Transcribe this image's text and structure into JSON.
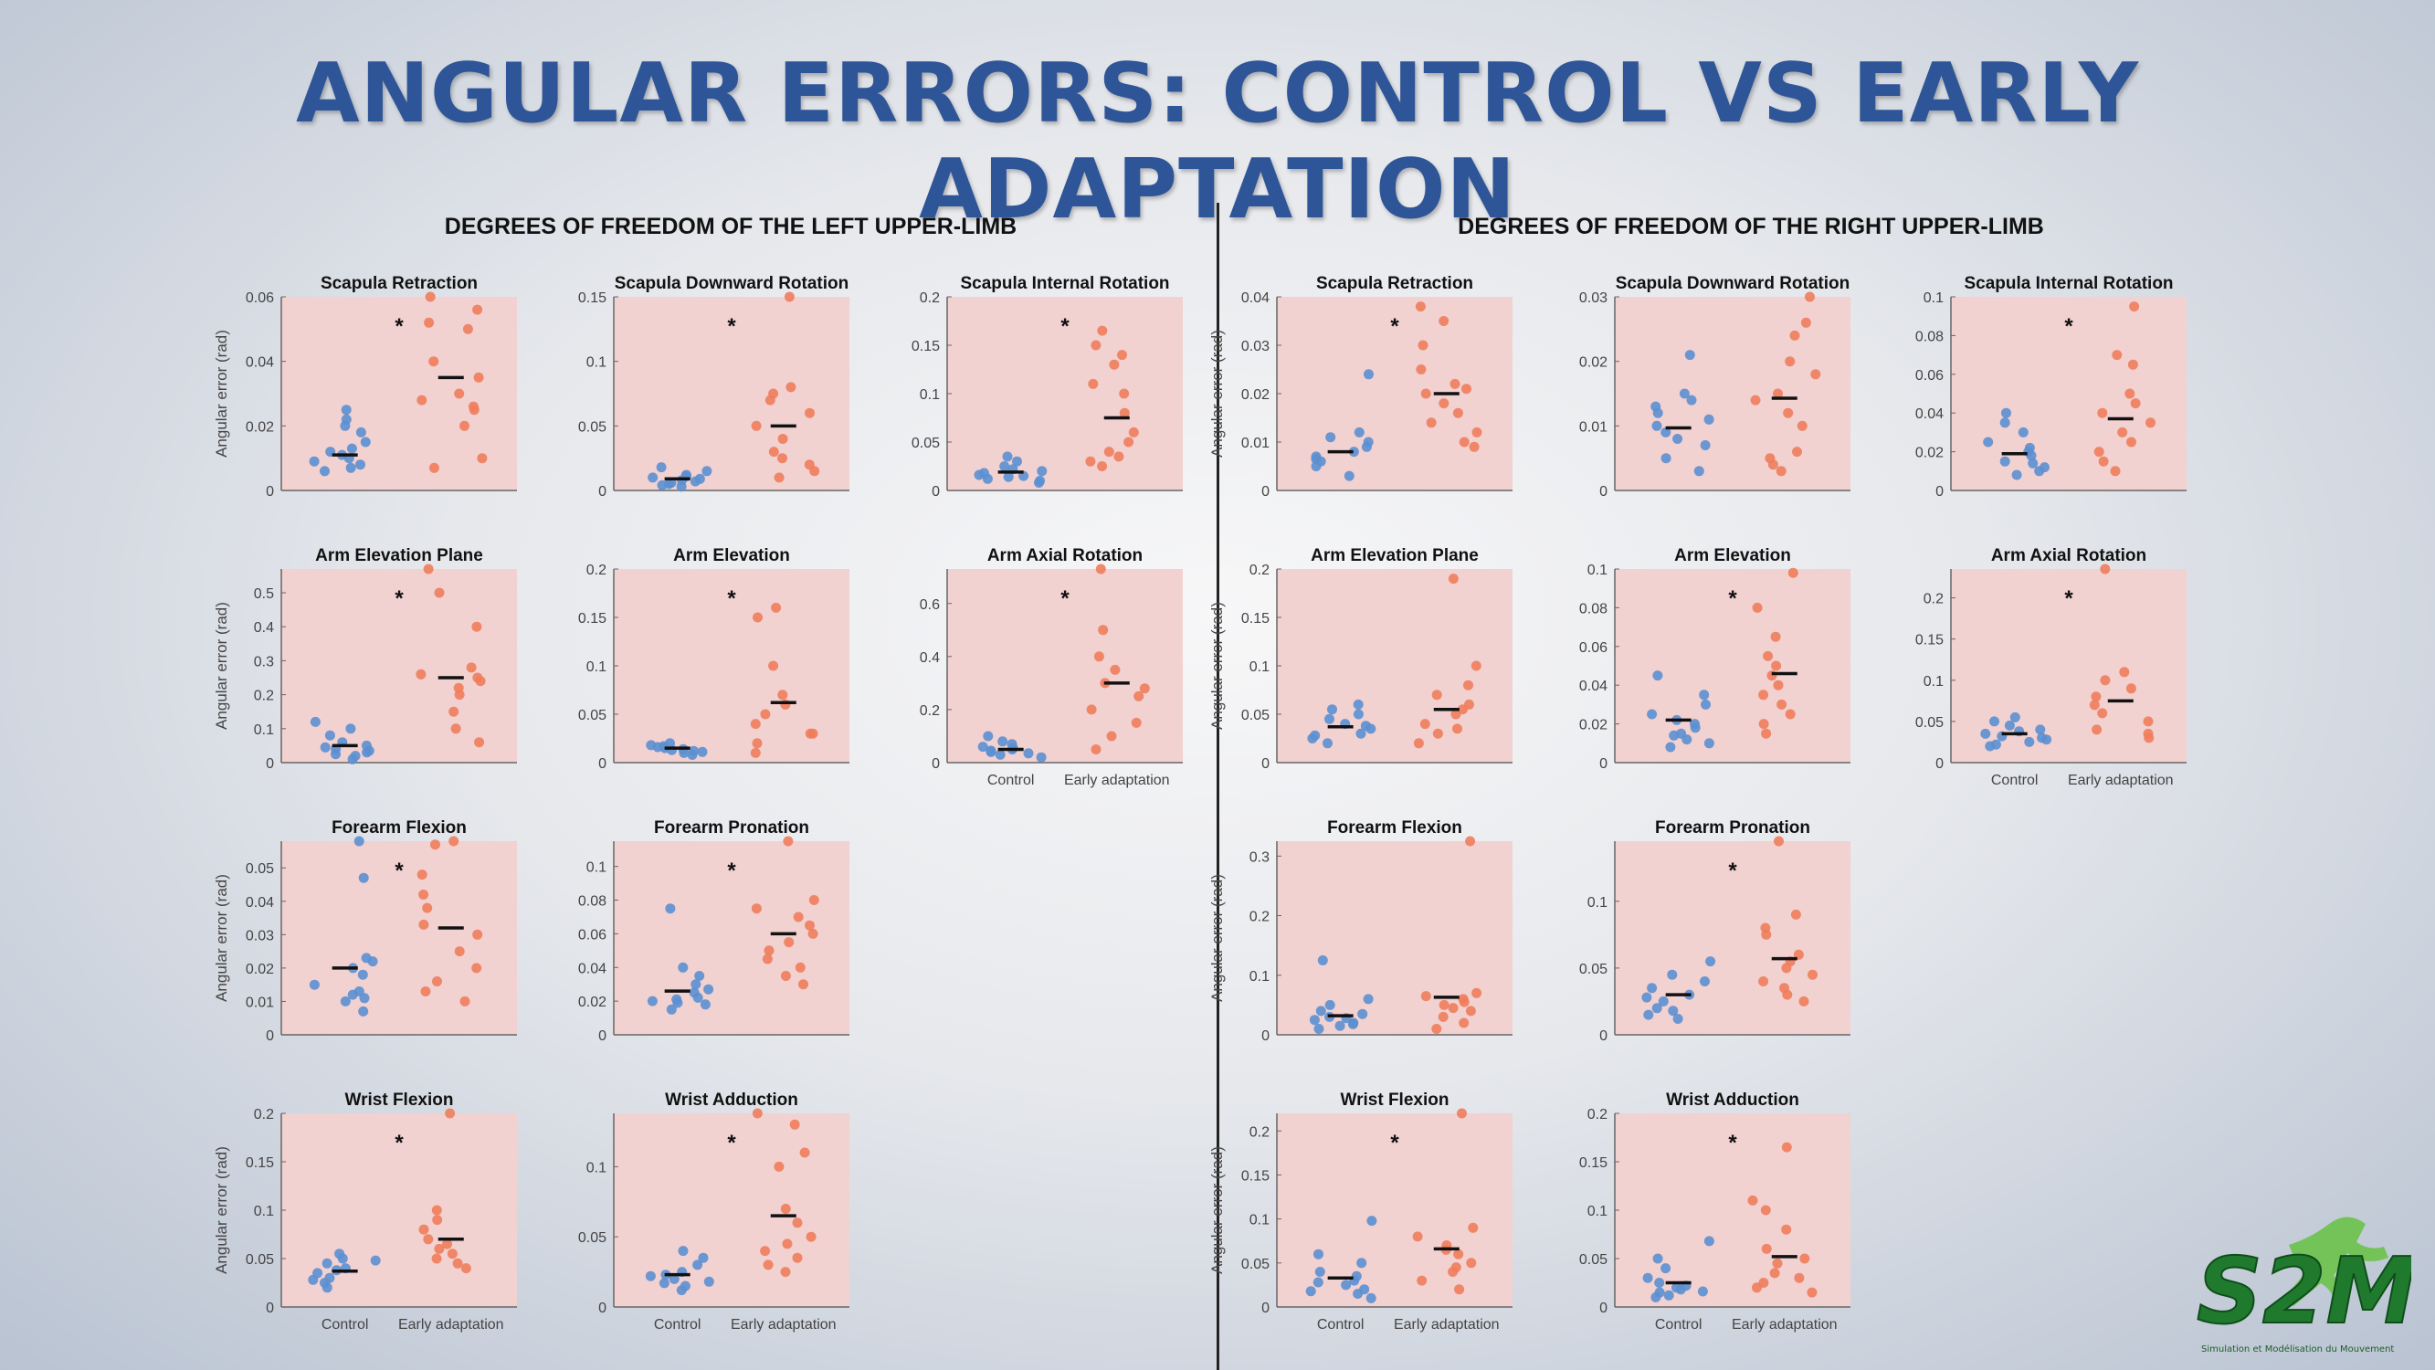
{
  "slide_title": "ANGULAR ERRORS: CONTROL VS EARLY ADAPTATION",
  "panels": {
    "left": "DEGREES OF FREEDOM OF THE LEFT UPPER-LIMB",
    "right": "DEGREES OF FREEDOM OF THE RIGHT UPPER-LIMB"
  },
  "logo": {
    "text": "S2M",
    "subtitle": "Simulation et Modélisation du Mouvement"
  },
  "colors": {
    "control": "#5b8fd0",
    "adaptation": "#f07d5c",
    "plot_bg": "#f2d1d1",
    "title": "#2e5597"
  },
  "chart_data": [
    {
      "type": "scatter",
      "side": "left",
      "title": "Scapula Retraction",
      "ylabel": "Angular error (rad)",
      "ylim": [
        0,
        0.06
      ],
      "yticks": [
        "0",
        "0.02",
        "0.04",
        "0.06"
      ],
      "significant": true,
      "categories": [],
      "series": [
        {
          "values": [
            0.006,
            0.008,
            0.01,
            0.011,
            0.012,
            0.015,
            0.018,
            0.02,
            0.022,
            0.025,
            0.009,
            0.007,
            0.013
          ],
          "median": 0.011
        },
        {
          "values": [
            0.007,
            0.01,
            0.02,
            0.025,
            0.026,
            0.028,
            0.03,
            0.035,
            0.04,
            0.05,
            0.052,
            0.056,
            0.06
          ],
          "median": 0.035
        }
      ]
    },
    {
      "type": "scatter",
      "side": "left",
      "title": "Scapula Downward Rotation",
      "ylabel": "",
      "ylim": [
        0,
        0.15
      ],
      "yticks": [
        "0",
        "0.05",
        "0.1",
        "0.15"
      ],
      "significant": true,
      "categories": [],
      "series": [
        {
          "values": [
            0.003,
            0.005,
            0.006,
            0.008,
            0.01,
            0.012,
            0.015,
            0.018,
            0.004,
            0.007,
            0.009,
            0.011
          ],
          "median": 0.009
        },
        {
          "values": [
            0.01,
            0.015,
            0.02,
            0.025,
            0.03,
            0.04,
            0.05,
            0.06,
            0.07,
            0.075,
            0.08,
            0.15
          ],
          "median": 0.05
        }
      ]
    },
    {
      "type": "scatter",
      "side": "left",
      "title": "Scapula Internal Rotation",
      "ylabel": "",
      "ylim": [
        0,
        0.2
      ],
      "yticks": [
        "0",
        "0.05",
        "0.1",
        "0.15",
        "0.2"
      ],
      "significant": true,
      "categories": [],
      "series": [
        {
          "values": [
            0.008,
            0.01,
            0.012,
            0.015,
            0.018,
            0.02,
            0.022,
            0.025,
            0.03,
            0.035,
            0.014,
            0.016
          ],
          "median": 0.019
        },
        {
          "values": [
            0.025,
            0.03,
            0.035,
            0.04,
            0.05,
            0.06,
            0.08,
            0.1,
            0.11,
            0.13,
            0.14,
            0.15,
            0.165
          ],
          "median": 0.075
        }
      ]
    },
    {
      "type": "scatter",
      "side": "left",
      "title": "Arm Elevation Plane",
      "ylabel": "Angular error (rad)",
      "ylim": [
        0,
        0.57
      ],
      "yticks": [
        "0",
        "0.1",
        "0.2",
        "0.3",
        "0.4",
        "0.5"
      ],
      "significant": true,
      "categories": [],
      "series": [
        {
          "values": [
            0.01,
            0.02,
            0.03,
            0.04,
            0.05,
            0.06,
            0.08,
            0.1,
            0.12,
            0.025,
            0.035,
            0.045
          ],
          "median": 0.05
        },
        {
          "values": [
            0.06,
            0.1,
            0.15,
            0.2,
            0.22,
            0.24,
            0.25,
            0.26,
            0.28,
            0.4,
            0.5,
            0.57
          ],
          "median": 0.25
        }
      ]
    },
    {
      "type": "scatter",
      "side": "left",
      "title": "Arm Elevation",
      "ylabel": "",
      "ylim": [
        0,
        0.2
      ],
      "yticks": [
        "0",
        "0.05",
        "0.1",
        "0.15",
        "0.2"
      ],
      "significant": true,
      "categories": [],
      "series": [
        {
          "values": [
            0.008,
            0.01,
            0.012,
            0.014,
            0.015,
            0.016,
            0.018,
            0.02,
            0.011,
            0.013,
            0.017
          ],
          "median": 0.015
        },
        {
          "values": [
            0.01,
            0.02,
            0.03,
            0.04,
            0.05,
            0.06,
            0.07,
            0.1,
            0.15,
            0.16,
            0.03
          ],
          "median": 0.062
        }
      ]
    },
    {
      "type": "scatter",
      "side": "left",
      "title": "Arm Axial Rotation",
      "ylabel": "",
      "ylim": [
        0,
        0.73
      ],
      "yticks": [
        "0",
        "0.2",
        "0.4",
        "0.6"
      ],
      "significant": true,
      "categories": [
        "Control",
        "Early adaptation"
      ],
      "series": [
        {
          "values": [
            0.02,
            0.03,
            0.04,
            0.05,
            0.06,
            0.07,
            0.08,
            0.1,
            0.035,
            0.045,
            0.055
          ],
          "median": 0.05
        },
        {
          "values": [
            0.05,
            0.1,
            0.15,
            0.2,
            0.25,
            0.28,
            0.3,
            0.35,
            0.4,
            0.5,
            0.73
          ],
          "median": 0.3
        }
      ]
    },
    {
      "type": "scatter",
      "side": "left",
      "title": "Forearm Flexion",
      "ylabel": "Angular error (rad)",
      "ylim": [
        0,
        0.058
      ],
      "yticks": [
        "0",
        "0.01",
        "0.02",
        "0.03",
        "0.04",
        "0.05"
      ],
      "significant": true,
      "categories": [],
      "series": [
        {
          "values": [
            0.007,
            0.01,
            0.012,
            0.013,
            0.015,
            0.018,
            0.02,
            0.022,
            0.023,
            0.047,
            0.058,
            0.011
          ],
          "median": 0.02
        },
        {
          "values": [
            0.01,
            0.013,
            0.016,
            0.02,
            0.025,
            0.03,
            0.033,
            0.038,
            0.042,
            0.048,
            0.057,
            0.058
          ],
          "median": 0.032
        }
      ]
    },
    {
      "type": "scatter",
      "side": "left",
      "title": "Forearm Pronation",
      "ylabel": "",
      "ylim": [
        0,
        0.115
      ],
      "yticks": [
        "0",
        "0.02",
        "0.04",
        "0.06",
        "0.08",
        "0.1"
      ],
      "significant": true,
      "categories": [],
      "series": [
        {
          "values": [
            0.015,
            0.018,
            0.02,
            0.022,
            0.025,
            0.027,
            0.03,
            0.035,
            0.04,
            0.075,
            0.019,
            0.021
          ],
          "median": 0.026
        },
        {
          "values": [
            0.03,
            0.035,
            0.04,
            0.045,
            0.05,
            0.055,
            0.06,
            0.065,
            0.07,
            0.075,
            0.08,
            0.115
          ],
          "median": 0.06
        }
      ]
    },
    {
      "type": "scatter",
      "side": "left",
      "title": "Wrist Flexion",
      "ylabel": "Angular error (rad)",
      "ylim": [
        0,
        0.2
      ],
      "yticks": [
        "0",
        "0.05",
        "0.1",
        "0.15",
        "0.2"
      ],
      "significant": true,
      "categories": [
        "Control",
        "Early adaptation"
      ],
      "series": [
        {
          "values": [
            0.02,
            0.025,
            0.03,
            0.035,
            0.04,
            0.045,
            0.05,
            0.055,
            0.028,
            0.038,
            0.048
          ],
          "median": 0.037
        },
        {
          "values": [
            0.04,
            0.045,
            0.05,
            0.055,
            0.06,
            0.065,
            0.07,
            0.08,
            0.09,
            0.1,
            0.2
          ],
          "median": 0.07
        }
      ]
    },
    {
      "type": "scatter",
      "side": "left",
      "title": "Wrist  Adduction",
      "ylabel": "",
      "ylim": [
        0,
        0.138
      ],
      "yticks": [
        "0",
        "0.05",
        "0.1"
      ],
      "significant": true,
      "categories": [
        "Control",
        "Early adaptation"
      ],
      "series": [
        {
          "values": [
            0.012,
            0.015,
            0.018,
            0.02,
            0.022,
            0.025,
            0.03,
            0.035,
            0.04,
            0.017,
            0.023
          ],
          "median": 0.023
        },
        {
          "values": [
            0.025,
            0.03,
            0.035,
            0.04,
            0.045,
            0.05,
            0.06,
            0.07,
            0.1,
            0.11,
            0.13,
            0.138
          ],
          "median": 0.065
        }
      ]
    },
    {
      "type": "scatter",
      "side": "right",
      "title": "Scapula Retraction",
      "ylabel": "Angular error (rad)",
      "ylim": [
        0,
        0.04
      ],
      "yticks": [
        "0",
        "0.01",
        "0.02",
        "0.03",
        "0.04"
      ],
      "significant": true,
      "categories": [],
      "series": [
        {
          "values": [
            0.003,
            0.005,
            0.006,
            0.007,
            0.008,
            0.009,
            0.01,
            0.011,
            0.012,
            0.024,
            0.0065
          ],
          "median": 0.008
        },
        {
          "values": [
            0.009,
            0.01,
            0.012,
            0.014,
            0.016,
            0.018,
            0.02,
            0.021,
            0.022,
            0.025,
            0.03,
            0.035,
            0.038
          ],
          "median": 0.02
        }
      ]
    },
    {
      "type": "scatter",
      "side": "right",
      "title": "Scapula Downward Rotation",
      "ylabel": "",
      "ylim": [
        0,
        0.03
      ],
      "yticks": [
        "0",
        "0.01",
        "0.02",
        "0.03"
      ],
      "significant": false,
      "categories": [],
      "series": [
        {
          "values": [
            0.003,
            0.005,
            0.007,
            0.009,
            0.01,
            0.011,
            0.012,
            0.013,
            0.014,
            0.015,
            0.021,
            0.008
          ],
          "median": 0.0097
        },
        {
          "values": [
            0.003,
            0.004,
            0.005,
            0.006,
            0.01,
            0.012,
            0.014,
            0.015,
            0.018,
            0.02,
            0.024,
            0.026,
            0.03
          ],
          "median": 0.0143
        }
      ]
    },
    {
      "type": "scatter",
      "side": "right",
      "title": "Scapula Internal Rotation",
      "ylabel": "",
      "ylim": [
        0,
        0.1
      ],
      "yticks": [
        "0",
        "0.02",
        "0.04",
        "0.06",
        "0.08",
        "0.1"
      ],
      "significant": true,
      "categories": [],
      "series": [
        {
          "values": [
            0.008,
            0.01,
            0.012,
            0.015,
            0.018,
            0.02,
            0.022,
            0.025,
            0.03,
            0.035,
            0.04,
            0.014
          ],
          "median": 0.019
        },
        {
          "values": [
            0.01,
            0.015,
            0.02,
            0.025,
            0.03,
            0.035,
            0.04,
            0.045,
            0.05,
            0.065,
            0.07,
            0.095
          ],
          "median": 0.037
        }
      ]
    },
    {
      "type": "scatter",
      "side": "right",
      "title": "Arm Elevation Plane",
      "ylabel": "Angular error (rad)",
      "ylim": [
        0,
        0.2
      ],
      "yticks": [
        "0",
        "0.05",
        "0.1",
        "0.15",
        "0.2"
      ],
      "significant": false,
      "categories": [],
      "series": [
        {
          "values": [
            0.02,
            0.025,
            0.03,
            0.035,
            0.04,
            0.045,
            0.05,
            0.055,
            0.06,
            0.028,
            0.038
          ],
          "median": 0.037
        },
        {
          "values": [
            0.02,
            0.03,
            0.035,
            0.04,
            0.05,
            0.055,
            0.06,
            0.07,
            0.08,
            0.1,
            0.19
          ],
          "median": 0.055
        }
      ]
    },
    {
      "type": "scatter",
      "side": "right",
      "title": "Arm Elevation",
      "ylabel": "",
      "ylim": [
        0,
        0.1
      ],
      "yticks": [
        "0",
        "0.02",
        "0.04",
        "0.06",
        "0.08",
        "0.1"
      ],
      "significant": true,
      "categories": [],
      "series": [
        {
          "values": [
            0.008,
            0.01,
            0.012,
            0.015,
            0.018,
            0.02,
            0.022,
            0.025,
            0.03,
            0.035,
            0.045,
            0.014
          ],
          "median": 0.022
        },
        {
          "values": [
            0.015,
            0.02,
            0.025,
            0.03,
            0.035,
            0.04,
            0.045,
            0.05,
            0.055,
            0.065,
            0.08,
            0.098
          ],
          "median": 0.046
        }
      ]
    },
    {
      "type": "scatter",
      "side": "right",
      "title": "Arm Axial Rotation",
      "ylabel": "",
      "ylim": [
        0,
        0.235
      ],
      "yticks": [
        "0",
        "0.05",
        "0.1",
        "0.15",
        "0.2"
      ],
      "significant": true,
      "categories": [
        "Control",
        "Early adaptation"
      ],
      "series": [
        {
          "values": [
            0.02,
            0.025,
            0.028,
            0.03,
            0.032,
            0.035,
            0.038,
            0.04,
            0.045,
            0.05,
            0.055,
            0.022
          ],
          "median": 0.035
        },
        {
          "values": [
            0.03,
            0.035,
            0.04,
            0.05,
            0.06,
            0.07,
            0.08,
            0.09,
            0.1,
            0.11,
            0.235
          ],
          "median": 0.075
        }
      ]
    },
    {
      "type": "scatter",
      "side": "right",
      "title": "Forearm Flexion",
      "ylabel": "Angular error (rad)",
      "ylim": [
        0,
        0.325
      ],
      "yticks": [
        "0",
        "0.1",
        "0.2",
        "0.3"
      ],
      "significant": false,
      "categories": [],
      "series": [
        {
          "values": [
            0.01,
            0.015,
            0.02,
            0.025,
            0.03,
            0.035,
            0.04,
            0.05,
            0.06,
            0.125,
            0.018,
            0.028
          ],
          "median": 0.032
        },
        {
          "values": [
            0.01,
            0.02,
            0.03,
            0.04,
            0.05,
            0.055,
            0.06,
            0.065,
            0.07,
            0.325,
            0.045
          ],
          "median": 0.063
        }
      ]
    },
    {
      "type": "scatter",
      "side": "right",
      "title": "Forearm Pronation",
      "ylabel": "",
      "ylim": [
        0,
        0.145
      ],
      "yticks": [
        "0",
        "0.05",
        "0.1"
      ],
      "significant": true,
      "categories": [],
      "series": [
        {
          "values": [
            0.012,
            0.015,
            0.02,
            0.025,
            0.03,
            0.035,
            0.04,
            0.045,
            0.055,
            0.018,
            0.028
          ],
          "median": 0.03
        },
        {
          "values": [
            0.025,
            0.03,
            0.035,
            0.04,
            0.045,
            0.05,
            0.055,
            0.06,
            0.075,
            0.08,
            0.09,
            0.145
          ],
          "median": 0.057
        }
      ]
    },
    {
      "type": "scatter",
      "side": "right",
      "title": "Wrist Flexion",
      "ylabel": "Angular error (rad)",
      "ylim": [
        0,
        0.22
      ],
      "yticks": [
        "0",
        "0.05",
        "0.1",
        "0.15",
        "0.2"
      ],
      "significant": true,
      "categories": [
        "Control",
        "Early adaptation"
      ],
      "series": [
        {
          "values": [
            0.01,
            0.015,
            0.02,
            0.025,
            0.03,
            0.035,
            0.04,
            0.05,
            0.06,
            0.098,
            0.018,
            0.028
          ],
          "median": 0.033
        },
        {
          "values": [
            0.02,
            0.03,
            0.04,
            0.05,
            0.06,
            0.065,
            0.07,
            0.08,
            0.09,
            0.22,
            0.045
          ],
          "median": 0.066
        }
      ]
    },
    {
      "type": "scatter",
      "side": "right",
      "title": "Wrist Adduction",
      "ylabel": "",
      "ylim": [
        0,
        0.2
      ],
      "yticks": [
        "0",
        "0.05",
        "0.1",
        "0.15",
        "0.2"
      ],
      "significant": true,
      "categories": [
        "Control",
        "Early adaptation"
      ],
      "series": [
        {
          "values": [
            0.01,
            0.012,
            0.015,
            0.018,
            0.02,
            0.022,
            0.025,
            0.03,
            0.04,
            0.05,
            0.068,
            0.016
          ],
          "median": 0.025
        },
        {
          "values": [
            0.015,
            0.02,
            0.025,
            0.03,
            0.035,
            0.045,
            0.05,
            0.06,
            0.08,
            0.1,
            0.11,
            0.165
          ],
          "median": 0.052
        }
      ]
    }
  ]
}
